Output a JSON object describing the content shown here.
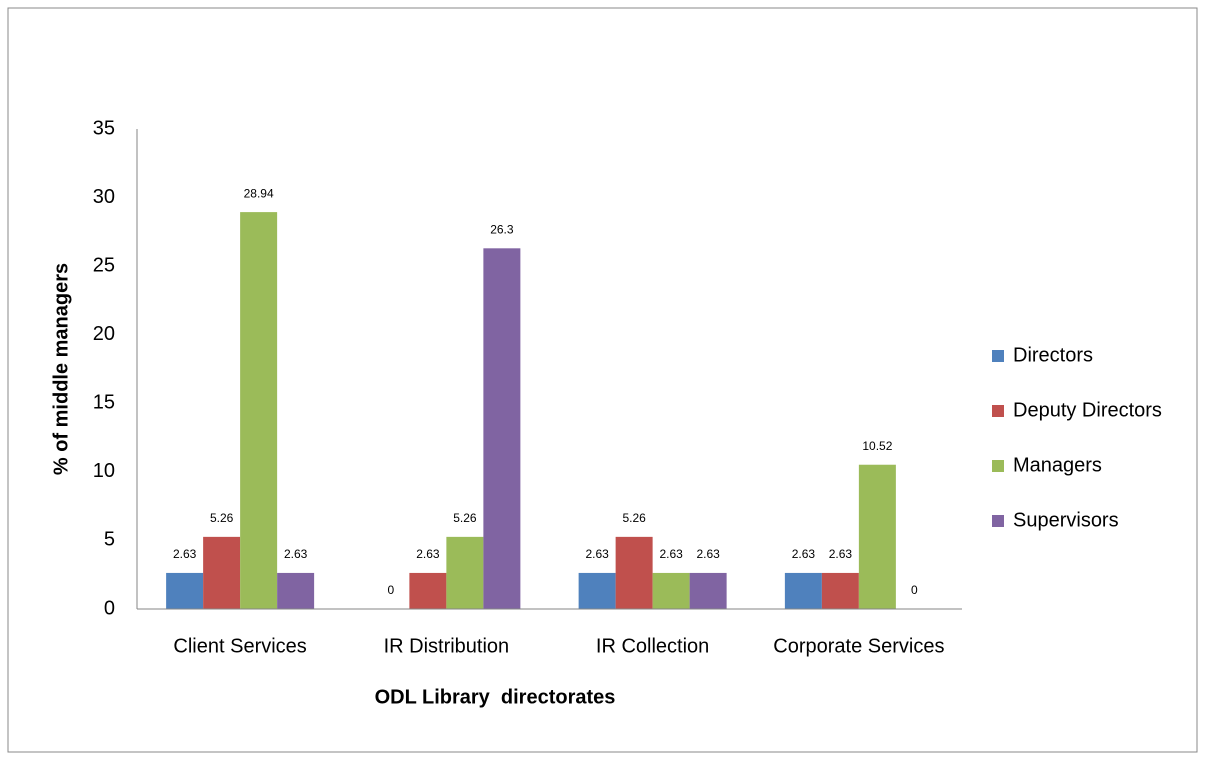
{
  "chart_data": {
    "type": "bar",
    "xlabel": "ODL Library  directorates",
    "ylabel": "% of middle managers",
    "categories": [
      "Client Services",
      "IR Distribution",
      "IR Collection",
      "Corporate Services"
    ],
    "series": [
      {
        "name": "Directors",
        "color": "#4f81bd",
        "values": [
          2.63,
          0,
          2.63,
          2.63
        ]
      },
      {
        "name": "Deputy Directors",
        "color": "#c0504d",
        "values": [
          5.26,
          2.63,
          5.26,
          2.63
        ]
      },
      {
        "name": "Managers",
        "color": "#9bbb59",
        "values": [
          28.94,
          5.26,
          2.63,
          10.52
        ]
      },
      {
        "name": "Supervisors",
        "color": "#8064a2",
        "values": [
          2.63,
          26.3,
          2.63,
          0
        ]
      }
    ],
    "ylim": [
      0,
      35
    ],
    "yticks": [
      0,
      5,
      10,
      15,
      20,
      25,
      30,
      35
    ],
    "grid": false,
    "legend": "right"
  }
}
